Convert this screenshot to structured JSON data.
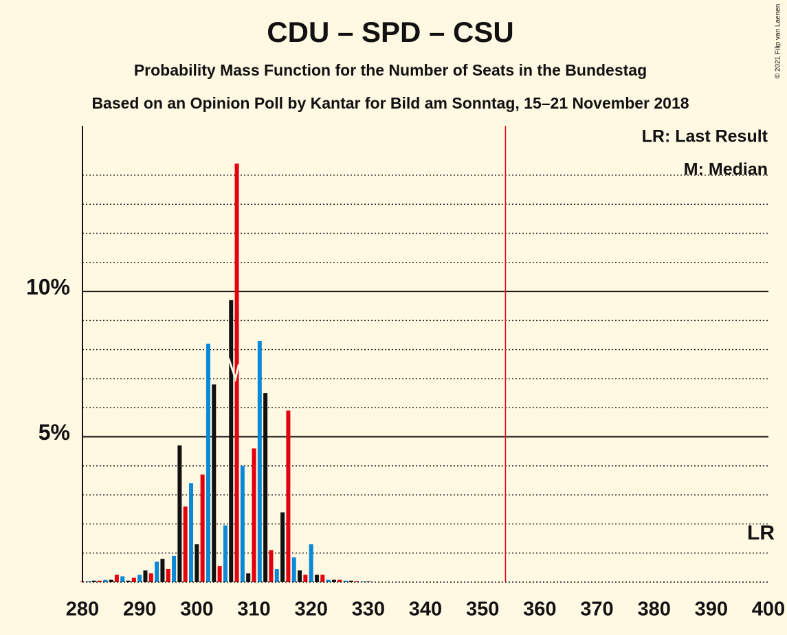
{
  "chart_data": {
    "type": "bar",
    "title": "CDU – SPD – CSU",
    "subtitle": "Probability Mass Function for the Number of Seats in the Bundestag",
    "subtitle2": "Based on an Opinion Poll by Kantar for Bild am Sonntag, 15–21 November 2018",
    "copyright": "© 2021 Filip van Laenen",
    "legend_lr": "LR: Last Result",
    "legend_median": "M: Median",
    "lr_label": "LR",
    "last_result": 354,
    "median": 307,
    "colors": [
      "#e3000f",
      "#0a8ad6",
      "#111111"
    ],
    "x": [
      280,
      281,
      282,
      283,
      284,
      285,
      286,
      287,
      288,
      289,
      290,
      291,
      292,
      293,
      294,
      295,
      296,
      297,
      298,
      299,
      300,
      301,
      302,
      303,
      304,
      305,
      306,
      307,
      308,
      309,
      310,
      311,
      312,
      313,
      314,
      315,
      316,
      317,
      318,
      319,
      320,
      321,
      322,
      323,
      324,
      325,
      326,
      327,
      328,
      329,
      330
    ],
    "values": [
      0.02,
      0.03,
      0.05,
      0.05,
      0.08,
      0.08,
      0.25,
      0.2,
      0.05,
      0.15,
      0.25,
      0.4,
      0.3,
      0.7,
      0.8,
      0.45,
      0.9,
      4.7,
      2.6,
      3.4,
      1.3,
      3.7,
      8.2,
      6.8,
      0.55,
      1.95,
      9.7,
      14.4,
      4.0,
      0.3,
      4.6,
      8.3,
      6.5,
      1.1,
      0.45,
      2.4,
      5.9,
      0.85,
      0.4,
      0.25,
      1.3,
      0.25,
      0.25,
      0.08,
      0.08,
      0.08,
      0.05,
      0.05,
      0.03,
      0.02,
      0.02
    ],
    "xlim": [
      280,
      400
    ],
    "xticks": [
      280,
      290,
      300,
      310,
      320,
      330,
      340,
      350,
      360,
      370,
      380,
      390,
      400
    ],
    "ylim": [
      0,
      15.7
    ],
    "yticks": [
      {
        "value": 5,
        "label": "5%"
      },
      {
        "value": 10,
        "label": "10%"
      }
    ],
    "minor_yticks": [
      1,
      2,
      3,
      4,
      6,
      7,
      8,
      9,
      11,
      12,
      13,
      14
    ]
  }
}
